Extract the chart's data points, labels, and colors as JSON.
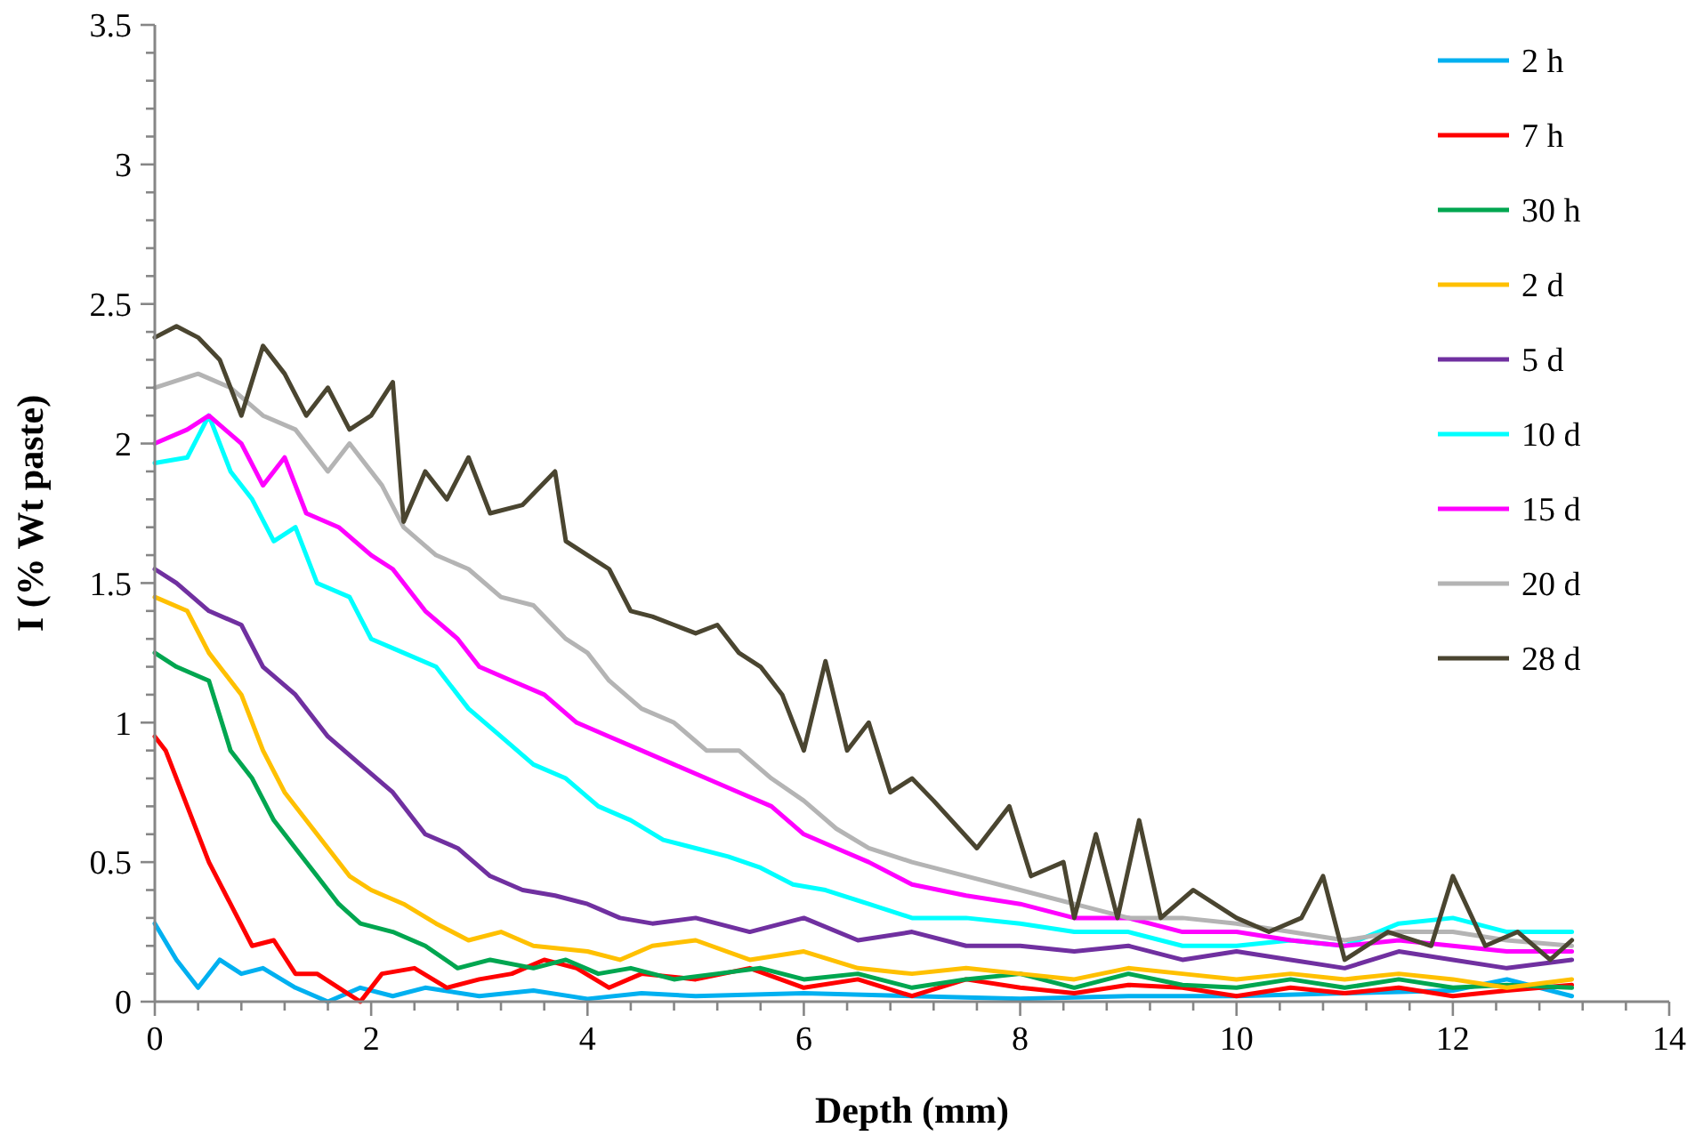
{
  "chart_data": {
    "type": "line",
    "xlabel": "Depth (mm)",
    "ylabel": "I (% Wt paste)",
    "xlim": [
      0,
      14
    ],
    "ylim": [
      0,
      3.5
    ],
    "xticks": [
      0,
      {
        "value": 0.4,
        "label": null
      },
      {
        "value": 0.8,
        "label": null
      },
      {
        "value": 1.2,
        "label": null
      },
      {
        "value": 1.6,
        "label": null
      },
      2,
      {
        "value": 2.4,
        "label": null
      },
      {
        "value": 2.8,
        "label": null
      },
      {
        "value": 3.2,
        "label": null
      },
      {
        "value": 3.6,
        "label": null
      },
      4,
      {
        "value": 4.4,
        "label": null
      },
      {
        "value": 4.8,
        "label": null
      },
      {
        "value": 5.2,
        "label": null
      },
      {
        "value": 5.6,
        "label": null
      },
      6,
      {
        "value": 6.4,
        "label": null
      },
      {
        "value": 6.8,
        "label": null
      },
      {
        "value": 7.2,
        "label": null
      },
      {
        "value": 7.6,
        "label": null
      },
      8,
      {
        "value": 8.4,
        "label": null
      },
      {
        "value": 8.8,
        "label": null
      },
      {
        "value": 9.2,
        "label": null
      },
      {
        "value": 9.6,
        "label": null
      },
      10,
      {
        "value": 10.4,
        "label": null
      },
      {
        "value": 10.8,
        "label": null
      },
      {
        "value": 11.2,
        "label": null
      },
      {
        "value": 11.6,
        "label": null
      },
      12,
      {
        "value": 12.4,
        "label": null
      },
      {
        "value": 12.8,
        "label": null
      },
      {
        "value": 13.2,
        "label": null
      },
      {
        "value": 13.6,
        "label": null
      },
      14
    ],
    "yticks": [
      0,
      {
        "value": 0.1,
        "label": null
      },
      {
        "value": 0.2,
        "label": null
      },
      {
        "value": 0.3,
        "label": null
      },
      {
        "value": 0.4,
        "label": null
      },
      0.5,
      {
        "value": 0.6,
        "label": null
      },
      {
        "value": 0.7,
        "label": null
      },
      {
        "value": 0.8,
        "label": null
      },
      {
        "value": 0.9,
        "label": null
      },
      1,
      {
        "value": 1.1,
        "label": null
      },
      {
        "value": 1.2,
        "label": null
      },
      {
        "value": 1.3,
        "label": null
      },
      {
        "value": 1.4,
        "label": null
      },
      1.5,
      {
        "value": 1.6,
        "label": null
      },
      {
        "value": 1.7,
        "label": null
      },
      {
        "value": 1.8,
        "label": null
      },
      {
        "value": 1.9,
        "label": null
      },
      2,
      {
        "value": 2.1,
        "label": null
      },
      {
        "value": 2.2,
        "label": null
      },
      {
        "value": 2.3,
        "label": null
      },
      {
        "value": 2.4,
        "label": null
      },
      2.5,
      {
        "value": 2.6,
        "label": null
      },
      {
        "value": 2.7,
        "label": null
      },
      {
        "value": 2.8,
        "label": null
      },
      {
        "value": 2.9,
        "label": null
      },
      3,
      {
        "value": 3.1,
        "label": null
      },
      {
        "value": 3.2,
        "label": null
      },
      {
        "value": 3.3,
        "label": null
      },
      {
        "value": 3.4,
        "label": null
      },
      3.5
    ],
    "grid": false,
    "legend": "top right",
    "marker": "none",
    "line_style": "solid",
    "series": [
      {
        "name": "2 h",
        "color": "#00b0f0",
        "x": [
          0,
          0.2,
          0.4,
          0.6,
          0.8,
          1.0,
          1.3,
          1.6,
          1.9,
          2.2,
          2.5,
          3.0,
          3.5,
          4.0,
          4.5,
          5.0,
          6.0,
          7.0,
          8.0,
          9.0,
          10.0,
          11.0,
          12.0,
          12.5,
          13.1
        ],
        "values": [
          0.28,
          0.15,
          0.05,
          0.15,
          0.1,
          0.12,
          0.05,
          0,
          0.05,
          0.02,
          0.05,
          0.02,
          0.04,
          0.01,
          0.03,
          0.02,
          0.03,
          0.02,
          0.01,
          0.02,
          0.02,
          0.03,
          0.04,
          0.08,
          0.02
        ]
      },
      {
        "name": "7 h",
        "color": "#ff0000",
        "x": [
          0,
          0.1,
          0.3,
          0.5,
          0.7,
          0.9,
          1.1,
          1.3,
          1.5,
          1.7,
          1.9,
          2.1,
          2.4,
          2.7,
          3.0,
          3.3,
          3.6,
          3.9,
          4.2,
          4.5,
          5.0,
          5.5,
          6.0,
          6.5,
          7.0,
          7.5,
          8.0,
          8.5,
          9.0,
          9.5,
          10.0,
          10.5,
          11.0,
          11.5,
          12.0,
          12.5,
          13.1
        ],
        "values": [
          0.95,
          0.9,
          0.7,
          0.5,
          0.35,
          0.2,
          0.22,
          0.1,
          0.1,
          0.05,
          0,
          0.1,
          0.12,
          0.05,
          0.08,
          0.1,
          0.15,
          0.12,
          0.05,
          0.1,
          0.08,
          0.12,
          0.05,
          0.08,
          0.02,
          0.08,
          0.05,
          0.03,
          0.06,
          0.05,
          0.02,
          0.05,
          0.03,
          0.05,
          0.02,
          0.04,
          0.06
        ]
      },
      {
        "name": "30 h",
        "color": "#00a650",
        "x": [
          0,
          0.2,
          0.5,
          0.7,
          0.9,
          1.1,
          1.3,
          1.5,
          1.7,
          1.9,
          2.2,
          2.5,
          2.8,
          3.1,
          3.5,
          3.8,
          4.1,
          4.4,
          4.8,
          5.2,
          5.6,
          6.0,
          6.5,
          7.0,
          7.5,
          8.0,
          8.5,
          9.0,
          9.5,
          10.0,
          10.5,
          11.0,
          11.5,
          12.0,
          12.5,
          13.1
        ],
        "values": [
          1.25,
          1.2,
          1.15,
          0.9,
          0.8,
          0.65,
          0.55,
          0.45,
          0.35,
          0.28,
          0.25,
          0.2,
          0.12,
          0.15,
          0.12,
          0.15,
          0.1,
          0.12,
          0.08,
          0.1,
          0.12,
          0.08,
          0.1,
          0.05,
          0.08,
          0.1,
          0.05,
          0.1,
          0.06,
          0.05,
          0.08,
          0.05,
          0.08,
          0.05,
          0.06,
          0.05
        ]
      },
      {
        "name": "2 d",
        "color": "#ffc000",
        "x": [
          0,
          0.3,
          0.5,
          0.8,
          1.0,
          1.2,
          1.5,
          1.8,
          2.0,
          2.3,
          2.6,
          2.9,
          3.2,
          3.5,
          4.0,
          4.3,
          4.6,
          5.0,
          5.5,
          6.0,
          6.5,
          7.0,
          7.5,
          8.0,
          8.5,
          9.0,
          9.5,
          10.0,
          10.5,
          11.0,
          11.5,
          12.0,
          12.5,
          13.1
        ],
        "values": [
          1.45,
          1.4,
          1.25,
          1.1,
          0.9,
          0.75,
          0.6,
          0.45,
          0.4,
          0.35,
          0.28,
          0.22,
          0.25,
          0.2,
          0.18,
          0.15,
          0.2,
          0.22,
          0.15,
          0.18,
          0.12,
          0.1,
          0.12,
          0.1,
          0.08,
          0.12,
          0.1,
          0.08,
          0.1,
          0.08,
          0.1,
          0.08,
          0.05,
          0.08
        ]
      },
      {
        "name": "5 d",
        "color": "#7030a0",
        "x": [
          0,
          0.2,
          0.5,
          0.8,
          1.0,
          1.3,
          1.6,
          1.9,
          2.2,
          2.5,
          2.8,
          3.1,
          3.4,
          3.7,
          4.0,
          4.3,
          4.6,
          5.0,
          5.5,
          6.0,
          6.5,
          7.0,
          7.5,
          8.0,
          8.5,
          9.0,
          9.5,
          10.0,
          10.5,
          11.0,
          11.5,
          12.0,
          12.5,
          13.1
        ],
        "values": [
          1.55,
          1.5,
          1.4,
          1.35,
          1.2,
          1.1,
          0.95,
          0.85,
          0.75,
          0.6,
          0.55,
          0.45,
          0.4,
          0.38,
          0.35,
          0.3,
          0.28,
          0.3,
          0.25,
          0.3,
          0.22,
          0.25,
          0.2,
          0.2,
          0.18,
          0.2,
          0.15,
          0.18,
          0.15,
          0.12,
          0.18,
          0.15,
          0.12,
          0.15
        ]
      },
      {
        "name": "10 d",
        "color": "#00ffff",
        "x": [
          0,
          0.3,
          0.5,
          0.7,
          0.9,
          1.1,
          1.3,
          1.5,
          1.8,
          2.0,
          2.3,
          2.6,
          2.9,
          3.2,
          3.5,
          3.8,
          4.1,
          4.4,
          4.7,
          5.0,
          5.3,
          5.6,
          5.9,
          6.2,
          6.6,
          7.0,
          7.5,
          8.0,
          8.5,
          9.0,
          9.5,
          10.0,
          10.5,
          11.0,
          11.5,
          12.0,
          12.5,
          13.1
        ],
        "values": [
          1.93,
          1.95,
          2.1,
          1.9,
          1.8,
          1.65,
          1.7,
          1.5,
          1.45,
          1.3,
          1.25,
          1.2,
          1.05,
          0.95,
          0.85,
          0.8,
          0.7,
          0.65,
          0.58,
          0.55,
          0.52,
          0.48,
          0.42,
          0.4,
          0.35,
          0.3,
          0.3,
          0.28,
          0.25,
          0.25,
          0.2,
          0.2,
          0.22,
          0.2,
          0.28,
          0.3,
          0.25,
          0.25
        ]
      },
      {
        "name": "15 d",
        "color": "#ff00ff",
        "x": [
          0,
          0.3,
          0.5,
          0.8,
          1.0,
          1.2,
          1.4,
          1.7,
          2.0,
          2.2,
          2.5,
          2.8,
          3.0,
          3.3,
          3.6,
          3.9,
          4.2,
          4.5,
          4.8,
          5.1,
          5.4,
          5.7,
          6.0,
          6.3,
          6.6,
          7.0,
          7.5,
          8.0,
          8.5,
          9.0,
          9.5,
          10.0,
          10.5,
          11.0,
          11.5,
          12.0,
          12.5,
          13.1
        ],
        "values": [
          2.0,
          2.05,
          2.1,
          2.0,
          1.85,
          1.95,
          1.75,
          1.7,
          1.6,
          1.55,
          1.4,
          1.3,
          1.2,
          1.15,
          1.1,
          1.0,
          0.95,
          0.9,
          0.85,
          0.8,
          0.75,
          0.7,
          0.6,
          0.55,
          0.5,
          0.42,
          0.38,
          0.35,
          0.3,
          0.3,
          0.25,
          0.25,
          0.22,
          0.2,
          0.22,
          0.2,
          0.18,
          0.18
        ]
      },
      {
        "name": "20 d",
        "color": "#b4b4b4",
        "x": [
          0,
          0.4,
          0.7,
          1.0,
          1.3,
          1.6,
          1.8,
          2.1,
          2.3,
          2.6,
          2.9,
          3.2,
          3.5,
          3.8,
          4.0,
          4.2,
          4.5,
          4.8,
          5.1,
          5.4,
          5.7,
          6.0,
          6.3,
          6.6,
          7.0,
          7.5,
          8.0,
          8.5,
          9.0,
          9.5,
          10.0,
          10.5,
          11.0,
          11.5,
          12.0,
          12.5,
          13.1
        ],
        "values": [
          2.2,
          2.25,
          2.2,
          2.1,
          2.05,
          1.9,
          2.0,
          1.85,
          1.7,
          1.6,
          1.55,
          1.45,
          1.42,
          1.3,
          1.25,
          1.15,
          1.05,
          1.0,
          0.9,
          0.9,
          0.8,
          0.72,
          0.62,
          0.55,
          0.5,
          0.45,
          0.4,
          0.35,
          0.3,
          0.3,
          0.28,
          0.25,
          0.22,
          0.25,
          0.25,
          0.22,
          0.2
        ]
      },
      {
        "name": "28 d",
        "color": "#4a4530",
        "x": [
          0,
          0.2,
          0.4,
          0.6,
          0.8,
          1.0,
          1.2,
          1.4,
          1.6,
          1.8,
          2.0,
          2.2,
          2.3,
          2.5,
          2.7,
          2.9,
          3.1,
          3.4,
          3.7,
          3.8,
          4.0,
          4.2,
          4.4,
          4.6,
          4.8,
          5.0,
          5.2,
          5.4,
          5.6,
          5.8,
          6.0,
          6.2,
          6.4,
          6.6,
          6.8,
          7.0,
          7.2,
          7.6,
          7.9,
          8.1,
          8.4,
          8.5,
          8.7,
          8.9,
          9.1,
          9.3,
          9.6,
          10.0,
          10.3,
          10.6,
          10.8,
          11.0,
          11.4,
          11.8,
          12.0,
          12.3,
          12.6,
          12.9,
          13.1
        ],
        "values": [
          2.38,
          2.42,
          2.38,
          2.3,
          2.1,
          2.35,
          2.25,
          2.1,
          2.2,
          2.05,
          2.1,
          2.22,
          1.72,
          1.9,
          1.8,
          1.95,
          1.75,
          1.78,
          1.9,
          1.65,
          1.6,
          1.55,
          1.4,
          1.38,
          1.35,
          1.32,
          1.35,
          1.25,
          1.2,
          1.1,
          0.9,
          1.22,
          0.9,
          1.0,
          0.75,
          0.8,
          0.72,
          0.55,
          0.7,
          0.45,
          0.5,
          0.3,
          0.6,
          0.3,
          0.65,
          0.3,
          0.4,
          0.3,
          0.25,
          0.3,
          0.45,
          0.15,
          0.25,
          0.2,
          0.45,
          0.2,
          0.25,
          0.15,
          0.22
        ]
      }
    ]
  }
}
